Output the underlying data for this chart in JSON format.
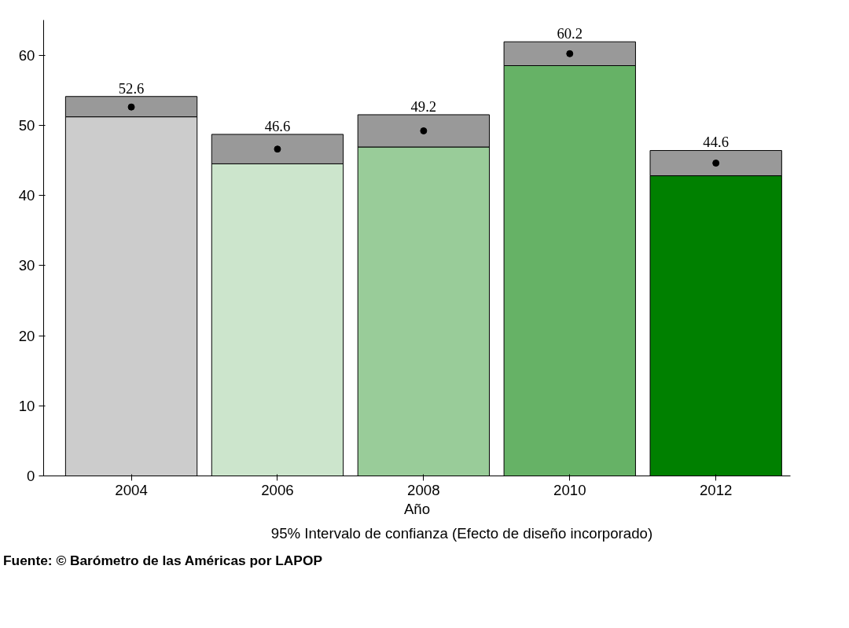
{
  "chart_data": {
    "type": "bar",
    "stacked": true,
    "categories": [
      "2004",
      "2006",
      "2008",
      "2010",
      "2012"
    ],
    "series": [
      {
        "colors": [
          "#cccccc",
          "#cce5cc",
          "#99cc99",
          "#66b266",
          "#008000"
        ],
        "values": [
          51.2,
          44.5,
          46.9,
          58.5,
          42.8
        ]
      },
      {
        "name": "95% Intervalo de confianza (Efecto de diseño incorporado)",
        "color": "#999999",
        "values": [
          2.9,
          4.2,
          4.6,
          3.4,
          3.6
        ]
      },
      {
        "type": "scatter",
        "color": "#000000",
        "values": [
          52.6,
          46.6,
          49.2,
          60.2,
          44.6
        ],
        "value_labels": [
          "52.6",
          "46.6",
          "49.2",
          "60.2",
          "44.6"
        ]
      }
    ],
    "marker": "circle",
    "xlabel": "Año",
    "ylim": [
      0,
      65
    ],
    "yticks": [
      0,
      10,
      20,
      30,
      40,
      50,
      60
    ],
    "legend": "bottom",
    "grid": false,
    "annotations": [
      "Fuente: © Barómetro de las Américas por LAPOP"
    ]
  }
}
